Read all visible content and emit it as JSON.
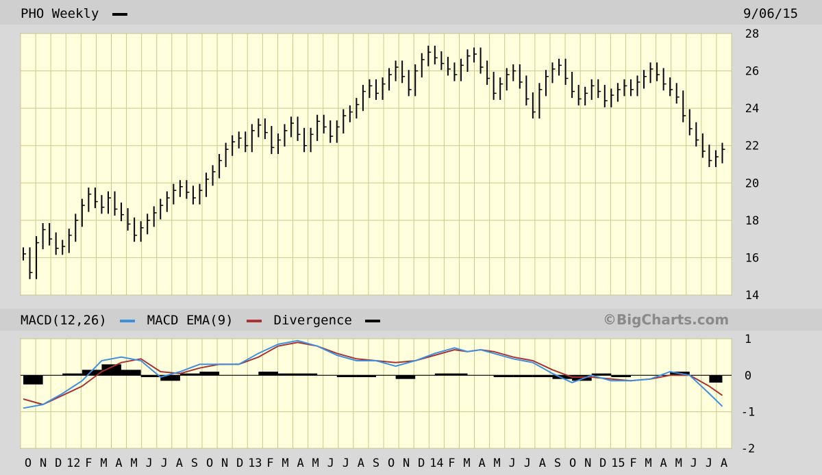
{
  "header": {
    "title": "PHO Weekly",
    "date": "9/06/15"
  },
  "macd_header": {
    "macd_label": "MACD(12,26)",
    "ema_label": "MACD EMA(9)",
    "divergence_label": "Divergence",
    "copyright": "©BigCharts.com"
  },
  "colors": {
    "plot_bg": "#ffffdd",
    "grid": "#c8c88a",
    "price": "#000000",
    "macd": "#3d8fe0",
    "ema": "#a83232",
    "divergence": "#000000",
    "frame_bg": "#d9d9d9",
    "header_bar": "#cfcfcf"
  },
  "chart_data": [
    {
      "type": "line",
      "title": "PHO Weekly",
      "ylim": [
        14,
        28
      ],
      "y_ticks": [
        "28",
        "26",
        "24",
        "22",
        "20",
        "18",
        "16",
        "14"
      ],
      "x_labels": [
        "O",
        "N",
        "D",
        "12",
        "F",
        "M",
        "A",
        "M",
        "J",
        "J",
        "A",
        "S",
        "O",
        "N",
        "D",
        "13",
        "F",
        "M",
        "A",
        "M",
        "J",
        "J",
        "A",
        "S",
        "O",
        "N",
        "D",
        "14",
        "F",
        "M",
        "A",
        "M",
        "J",
        "J",
        "A",
        "S",
        "O",
        "N",
        "D",
        "15",
        "F",
        "M",
        "A",
        "M",
        "J",
        "J",
        "A"
      ],
      "grid": true,
      "series": [
        {
          "name": "PHO Weekly",
          "x": [
            0,
            2,
            4,
            6,
            8,
            10,
            12,
            14,
            16,
            18,
            20,
            22,
            24,
            26,
            28,
            30,
            32,
            34,
            36,
            38,
            40,
            42,
            44,
            46,
            48,
            50,
            52,
            54,
            56,
            58,
            60,
            62,
            64,
            66,
            68,
            70,
            72,
            74,
            76,
            78,
            80,
            82,
            84,
            86,
            88,
            90,
            92,
            94,
            96,
            98,
            100,
            102,
            104,
            106,
            108,
            110,
            112,
            114,
            116,
            118,
            120,
            122,
            124,
            126,
            128,
            130,
            132,
            134,
            136,
            138,
            140,
            142,
            144,
            146,
            148,
            150,
            152,
            154,
            156,
            158,
            160,
            162,
            164,
            166,
            168,
            170,
            172,
            174,
            176,
            178,
            180,
            182,
            184,
            186,
            188,
            190,
            192,
            194,
            196,
            198,
            200,
            202,
            204,
            206,
            208,
            210,
            212,
            214
          ],
          "values": [
            16.2,
            15.2,
            16.8,
            17.5,
            17.0,
            16.5,
            16.6,
            17.2,
            18.0,
            18.8,
            19.4,
            19.0,
            18.7,
            19.2,
            18.6,
            18.3,
            17.8,
            17.2,
            17.6,
            18.0,
            18.4,
            18.8,
            19.2,
            19.6,
            19.8,
            19.5,
            19.2,
            19.6,
            20.2,
            20.6,
            21.2,
            21.8,
            22.2,
            22.4,
            22.0,
            22.8,
            23.1,
            22.7,
            21.9,
            22.3,
            22.8,
            23.2,
            22.6,
            22.0,
            22.6,
            23.3,
            23.0,
            22.5,
            23.0,
            23.6,
            23.8,
            24.2,
            24.9,
            25.2,
            24.8,
            25.3,
            25.8,
            26.2,
            25.7,
            25.0,
            26.0,
            26.6,
            27.0,
            26.7,
            26.4,
            26.1,
            25.8,
            26.3,
            26.8,
            26.9,
            26.2,
            25.6,
            24.8,
            25.3,
            25.8,
            26.0,
            25.4,
            24.5,
            23.8,
            25.0,
            25.7,
            26.1,
            26.3,
            25.6,
            24.9,
            24.5,
            24.8,
            25.2,
            24.9,
            24.4,
            24.7,
            25.0,
            25.2,
            25.0,
            25.4,
            25.7,
            26.1,
            25.8,
            25.3,
            25.0,
            24.6,
            23.6,
            22.9,
            22.3,
            21.7,
            21.2,
            21.4,
            21.8
          ]
        }
      ]
    },
    {
      "type": "line",
      "title": "MACD(12,26)",
      "ylim": [
        -2,
        1
      ],
      "y_ticks": [
        "1",
        "0",
        "-1",
        "-2"
      ],
      "grid": true,
      "series": [
        {
          "name": "MACD(12,26)",
          "x": [
            0,
            6,
            12,
            18,
            24,
            30,
            36,
            42,
            48,
            54,
            60,
            66,
            72,
            78,
            84,
            90,
            96,
            102,
            108,
            114,
            120,
            126,
            132,
            136,
            140,
            144,
            150,
            156,
            162,
            168,
            174,
            180,
            186,
            192,
            198,
            204,
            210,
            214
          ],
          "values": [
            -0.9,
            -0.8,
            -0.5,
            -0.15,
            0.4,
            0.5,
            0.4,
            -0.05,
            0.1,
            0.3,
            0.3,
            0.3,
            0.6,
            0.85,
            0.95,
            0.8,
            0.55,
            0.4,
            0.4,
            0.25,
            0.4,
            0.6,
            0.75,
            0.65,
            0.7,
            0.6,
            0.45,
            0.35,
            0.05,
            -0.2,
            0.0,
            -0.15,
            -0.15,
            -0.1,
            0.1,
            0.0,
            -0.5,
            -0.85
          ]
        },
        {
          "name": "MACD EMA(9)",
          "x": [
            0,
            6,
            12,
            18,
            24,
            30,
            36,
            42,
            48,
            54,
            60,
            66,
            72,
            78,
            84,
            90,
            96,
            102,
            108,
            114,
            120,
            126,
            132,
            136,
            140,
            144,
            150,
            156,
            162,
            168,
            174,
            180,
            186,
            192,
            198,
            204,
            210,
            214
          ],
          "values": [
            -0.65,
            -0.8,
            -0.55,
            -0.3,
            0.1,
            0.35,
            0.45,
            0.1,
            0.05,
            0.2,
            0.3,
            0.3,
            0.5,
            0.8,
            0.9,
            0.8,
            0.6,
            0.45,
            0.4,
            0.35,
            0.4,
            0.55,
            0.7,
            0.65,
            0.7,
            0.65,
            0.5,
            0.4,
            0.15,
            -0.05,
            -0.05,
            -0.1,
            -0.15,
            -0.1,
            0.0,
            0.0,
            -0.3,
            -0.55
          ]
        },
        {
          "name": "Divergence",
          "x": [
            0,
            6,
            12,
            18,
            24,
            30,
            36,
            42,
            48,
            54,
            60,
            66,
            72,
            78,
            84,
            90,
            96,
            102,
            108,
            114,
            120,
            126,
            132,
            136,
            140,
            144,
            150,
            156,
            162,
            168,
            174,
            180,
            186,
            192,
            198,
            204,
            210,
            214
          ],
          "values": [
            -0.25,
            0.0,
            0.05,
            0.15,
            0.3,
            0.15,
            -0.05,
            -0.15,
            0.05,
            0.1,
            0.0,
            0.0,
            0.1,
            0.05,
            0.05,
            0.0,
            -0.05,
            -0.05,
            0.0,
            -0.1,
            0.0,
            0.05,
            0.05,
            0.0,
            0.0,
            -0.05,
            -0.05,
            -0.05,
            -0.1,
            -0.15,
            0.05,
            -0.05,
            0.0,
            0.0,
            0.1,
            0.0,
            -0.2,
            -0.3
          ]
        }
      ]
    }
  ]
}
